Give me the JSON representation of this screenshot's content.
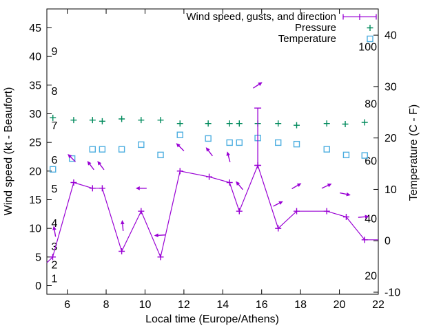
{
  "chart_data": {
    "type": "line",
    "title": "",
    "xlabel": "Local time (Europe/Athens)",
    "ylabel_left": "Wind speed (kt - Beaufort)",
    "ylabel_right": "Temperature (C - F)",
    "grid": false,
    "legend_position": "top-right",
    "x_axis": {
      "min": 4.95,
      "max": 22,
      "ticks": [
        6,
        8,
        10,
        12,
        14,
        16,
        18,
        20,
        22
      ]
    },
    "y_axis_left": {
      "min": -1.5,
      "max": 48.3,
      "ticks": [
        0,
        5,
        10,
        15,
        20,
        25,
        30,
        35,
        40,
        45
      ]
    },
    "y_axis_right": {
      "min": -10.4,
      "max": 45.1,
      "ticks": [
        -10,
        0,
        10,
        20,
        30,
        40
      ]
    },
    "beaufort_labels": [
      {
        "text": "1",
        "kt": 1.3
      },
      {
        "text": "2",
        "kt": 3.7
      },
      {
        "text": "3",
        "kt": 6.9
      },
      {
        "text": "4",
        "kt": 11
      },
      {
        "text": "5",
        "kt": 17
      },
      {
        "text": "6",
        "kt": 22
      },
      {
        "text": "7",
        "kt": 28
      },
      {
        "text": "8",
        "kt": 34
      },
      {
        "text": "9",
        "kt": 41
      }
    ],
    "fahrenheit_labels": [
      {
        "text": "20",
        "deg_c": -6.7
      },
      {
        "text": "40",
        "deg_c": 4.4
      },
      {
        "text": "60",
        "deg_c": 15.6
      },
      {
        "text": "80",
        "deg_c": 26.7
      },
      {
        "text": "100",
        "deg_c": 37.8
      }
    ],
    "legend": {
      "entries": [
        {
          "label": "Wind speed, gusts, and direction",
          "series": "wind"
        },
        {
          "label": "Pressure",
          "series": "pressure"
        },
        {
          "label": "Temperature",
          "series": "temperature"
        }
      ]
    },
    "series": {
      "wind": {
        "name": "Wind speed, gusts, and direction",
        "color": "#9900d4",
        "axis": "left",
        "marker": "plus",
        "points": [
          [
            5.25,
            5
          ],
          [
            6.33,
            18
          ],
          [
            7.3,
            17
          ],
          [
            7.8,
            17
          ],
          [
            8.8,
            6
          ],
          [
            9.8,
            13
          ],
          [
            10.8,
            5
          ],
          [
            11.8,
            20
          ],
          [
            13.3,
            19
          ],
          [
            14.35,
            18
          ],
          [
            14.85,
            13
          ],
          [
            15.8,
            21
          ],
          [
            16.85,
            10
          ],
          [
            17.8,
            13
          ],
          [
            19.35,
            13
          ],
          [
            20.35,
            12
          ],
          [
            21.3,
            8
          ]
        ],
        "line_start": [
          4.95,
          4
        ],
        "line_end": [
          22,
          8
        ],
        "gust_errorbar": {
          "t": 15.8,
          "from_kt": 21,
          "to_kt": 31
        }
      },
      "wind_direction_arrows": {
        "color": "#9900d4",
        "arrows": [
          [
            5.35,
            9.5,
            100
          ],
          [
            6.22,
            22.3,
            135
          ],
          [
            7.2,
            21,
            127
          ],
          [
            7.72,
            21,
            127
          ],
          [
            8.85,
            10.5,
            95
          ],
          [
            9.8,
            17,
            180
          ],
          [
            10.75,
            8.8,
            183
          ],
          [
            11.8,
            24.2,
            135
          ],
          [
            13.3,
            23.4,
            127
          ],
          [
            14.3,
            22.5,
            105
          ],
          [
            14.85,
            17.5,
            130
          ],
          [
            15.8,
            35,
            33
          ],
          [
            16.85,
            14.3,
            27
          ],
          [
            17.8,
            17.4,
            30
          ],
          [
            19.35,
            17.4,
            25
          ],
          [
            20.3,
            16,
            -12
          ],
          [
            21.25,
            12,
            5
          ]
        ]
      },
      "pressure": {
        "name": "Pressure",
        "color": "#008a5c",
        "axis": "left",
        "marker": "plus",
        "points": [
          [
            5.26,
            29.3
          ],
          [
            6.33,
            28.9
          ],
          [
            7.3,
            28.9
          ],
          [
            7.8,
            28.7
          ],
          [
            8.8,
            29.1
          ],
          [
            9.8,
            28.9
          ],
          [
            10.8,
            28.9
          ],
          [
            11.8,
            28.3
          ],
          [
            13.25,
            28.3
          ],
          [
            14.35,
            28.3
          ],
          [
            14.85,
            28.3
          ],
          [
            15.8,
            28.3
          ],
          [
            16.85,
            28.3
          ],
          [
            17.8,
            28.0
          ],
          [
            19.35,
            28.3
          ],
          [
            20.3,
            28.2
          ],
          [
            21.3,
            28.5
          ]
        ]
      },
      "temperature": {
        "name": "Temperature",
        "color": "#4daee0",
        "axis": "right",
        "marker": "open-square",
        "points": [
          [
            5.26,
            13.9
          ],
          [
            6.25,
            16.0
          ],
          [
            7.3,
            17.8
          ],
          [
            7.8,
            17.8
          ],
          [
            8.8,
            17.8
          ],
          [
            9.8,
            18.7
          ],
          [
            10.8,
            16.7
          ],
          [
            11.8,
            20.6
          ],
          [
            13.25,
            19.9
          ],
          [
            14.35,
            19.1
          ],
          [
            14.85,
            19.1
          ],
          [
            15.8,
            20.0
          ],
          [
            16.85,
            19.1
          ],
          [
            17.8,
            18.8
          ],
          [
            19.35,
            17.8
          ],
          [
            20.35,
            16.7
          ],
          [
            21.3,
            16.6
          ]
        ]
      }
    }
  }
}
